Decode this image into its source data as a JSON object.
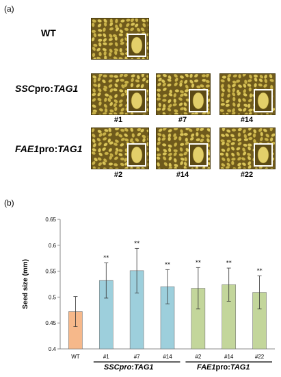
{
  "panel_a": {
    "label": "(a)",
    "rows": [
      {
        "label_parts": [
          {
            "text": "WT",
            "italic": false
          }
        ],
        "samples": []
      },
      {
        "label_parts": [
          {
            "text": "SSC",
            "italic": true
          },
          {
            "text": "pro:",
            "italic": false
          },
          {
            "text": "TAG1",
            "italic": true
          }
        ],
        "samples": [
          "#1",
          "#7",
          "#14"
        ]
      },
      {
        "label_parts": [
          {
            "text": "FAE1",
            "italic": true
          },
          {
            "text": "pro:",
            "italic": false
          },
          {
            "text": "TAG1",
            "italic": true
          }
        ],
        "samples": [
          "#2",
          "#14",
          "#22"
        ]
      }
    ]
  },
  "panel_b": {
    "label": "(b)"
  },
  "chart_data": {
    "type": "bar",
    "ylabel": "Seed size (mm)",
    "xlabel": "",
    "ylim": [
      0.4,
      0.65
    ],
    "yticks": [
      "0.4",
      "0.45",
      "0.5",
      "0.55",
      "0.6",
      "0.65"
    ],
    "categories": [
      "WT",
      "#1",
      "#7",
      "#14",
      "#2",
      "#14",
      "#22"
    ],
    "values": [
      0.472,
      0.532,
      0.551,
      0.52,
      0.517,
      0.524,
      0.509
    ],
    "errors": [
      0.029,
      0.034,
      0.043,
      0.033,
      0.04,
      0.032,
      0.032
    ],
    "significance": [
      "",
      "**",
      "**",
      "**",
      "**",
      "**",
      "**"
    ],
    "bar_colors": [
      "#f6b88a",
      "#9dcfdc",
      "#9dcfdc",
      "#9dcfdc",
      "#c3d69b",
      "#c3d69b",
      "#c3d69b"
    ],
    "groups": [
      {
        "label_parts": [
          {
            "text": "SSC",
            "italic": true
          },
          {
            "text": "pro",
            "italic": true
          },
          {
            "text": ":",
            "italic": false
          },
          {
            "text": "TAG1",
            "italic": true
          }
        ],
        "span": [
          1,
          3
        ]
      },
      {
        "label_parts": [
          {
            "text": "FAE1",
            "italic": true
          },
          {
            "text": "pro",
            "italic": false
          },
          {
            "text": ":",
            "italic": false
          },
          {
            "text": "TAG1",
            "italic": true
          }
        ],
        "span": [
          4,
          6
        ]
      }
    ]
  }
}
